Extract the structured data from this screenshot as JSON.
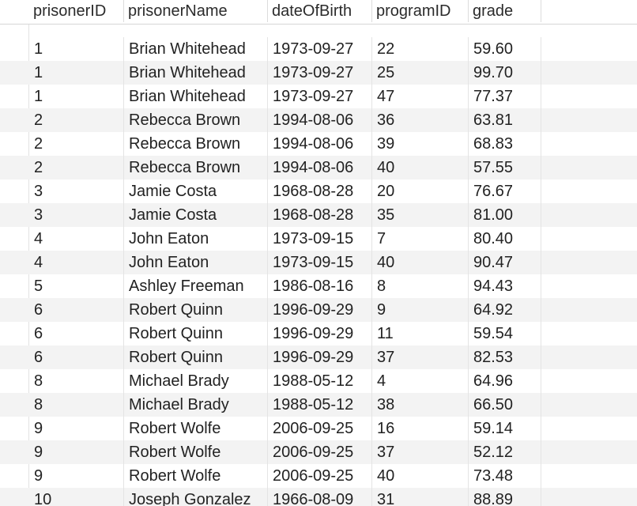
{
  "table": {
    "columns": [
      "prisonerID",
      "prisonerName",
      "dateOfBirth",
      "programID",
      "grade"
    ],
    "rows": [
      [
        "1",
        "Brian Whitehead",
        "1973-09-27",
        "22",
        "59.60"
      ],
      [
        "1",
        "Brian Whitehead",
        "1973-09-27",
        "25",
        "99.70"
      ],
      [
        "1",
        "Brian Whitehead",
        "1973-09-27",
        "47",
        "77.37"
      ],
      [
        "2",
        "Rebecca Brown",
        "1994-08-06",
        "36",
        "63.81"
      ],
      [
        "2",
        "Rebecca Brown",
        "1994-08-06",
        "39",
        "68.83"
      ],
      [
        "2",
        "Rebecca Brown",
        "1994-08-06",
        "40",
        "57.55"
      ],
      [
        "3",
        "Jamie Costa",
        "1968-08-28",
        "20",
        "76.67"
      ],
      [
        "3",
        "Jamie Costa",
        "1968-08-28",
        "35",
        "81.00"
      ],
      [
        "4",
        "John Eaton",
        "1973-09-15",
        "7",
        "80.40"
      ],
      [
        "4",
        "John Eaton",
        "1973-09-15",
        "40",
        "90.47"
      ],
      [
        "5",
        "Ashley Freeman",
        "1986-08-16",
        "8",
        "94.43"
      ],
      [
        "6",
        "Robert Quinn",
        "1996-09-29",
        "9",
        "64.92"
      ],
      [
        "6",
        "Robert Quinn",
        "1996-09-29",
        "11",
        "59.54"
      ],
      [
        "6",
        "Robert Quinn",
        "1996-09-29",
        "37",
        "82.53"
      ],
      [
        "8",
        "Michael Brady",
        "1988-05-12",
        "4",
        "64.96"
      ],
      [
        "8",
        "Michael Brady",
        "1988-05-12",
        "38",
        "66.50"
      ],
      [
        "9",
        "Robert Wolfe",
        "2006-09-25",
        "16",
        "59.14"
      ],
      [
        "9",
        "Robert Wolfe",
        "2006-09-25",
        "37",
        "52.12"
      ],
      [
        "9",
        "Robert Wolfe",
        "2006-09-25",
        "40",
        "73.48"
      ],
      [
        "10",
        "Joseph Gonzalez",
        "1966-08-09",
        "31",
        "88.89"
      ]
    ]
  }
}
